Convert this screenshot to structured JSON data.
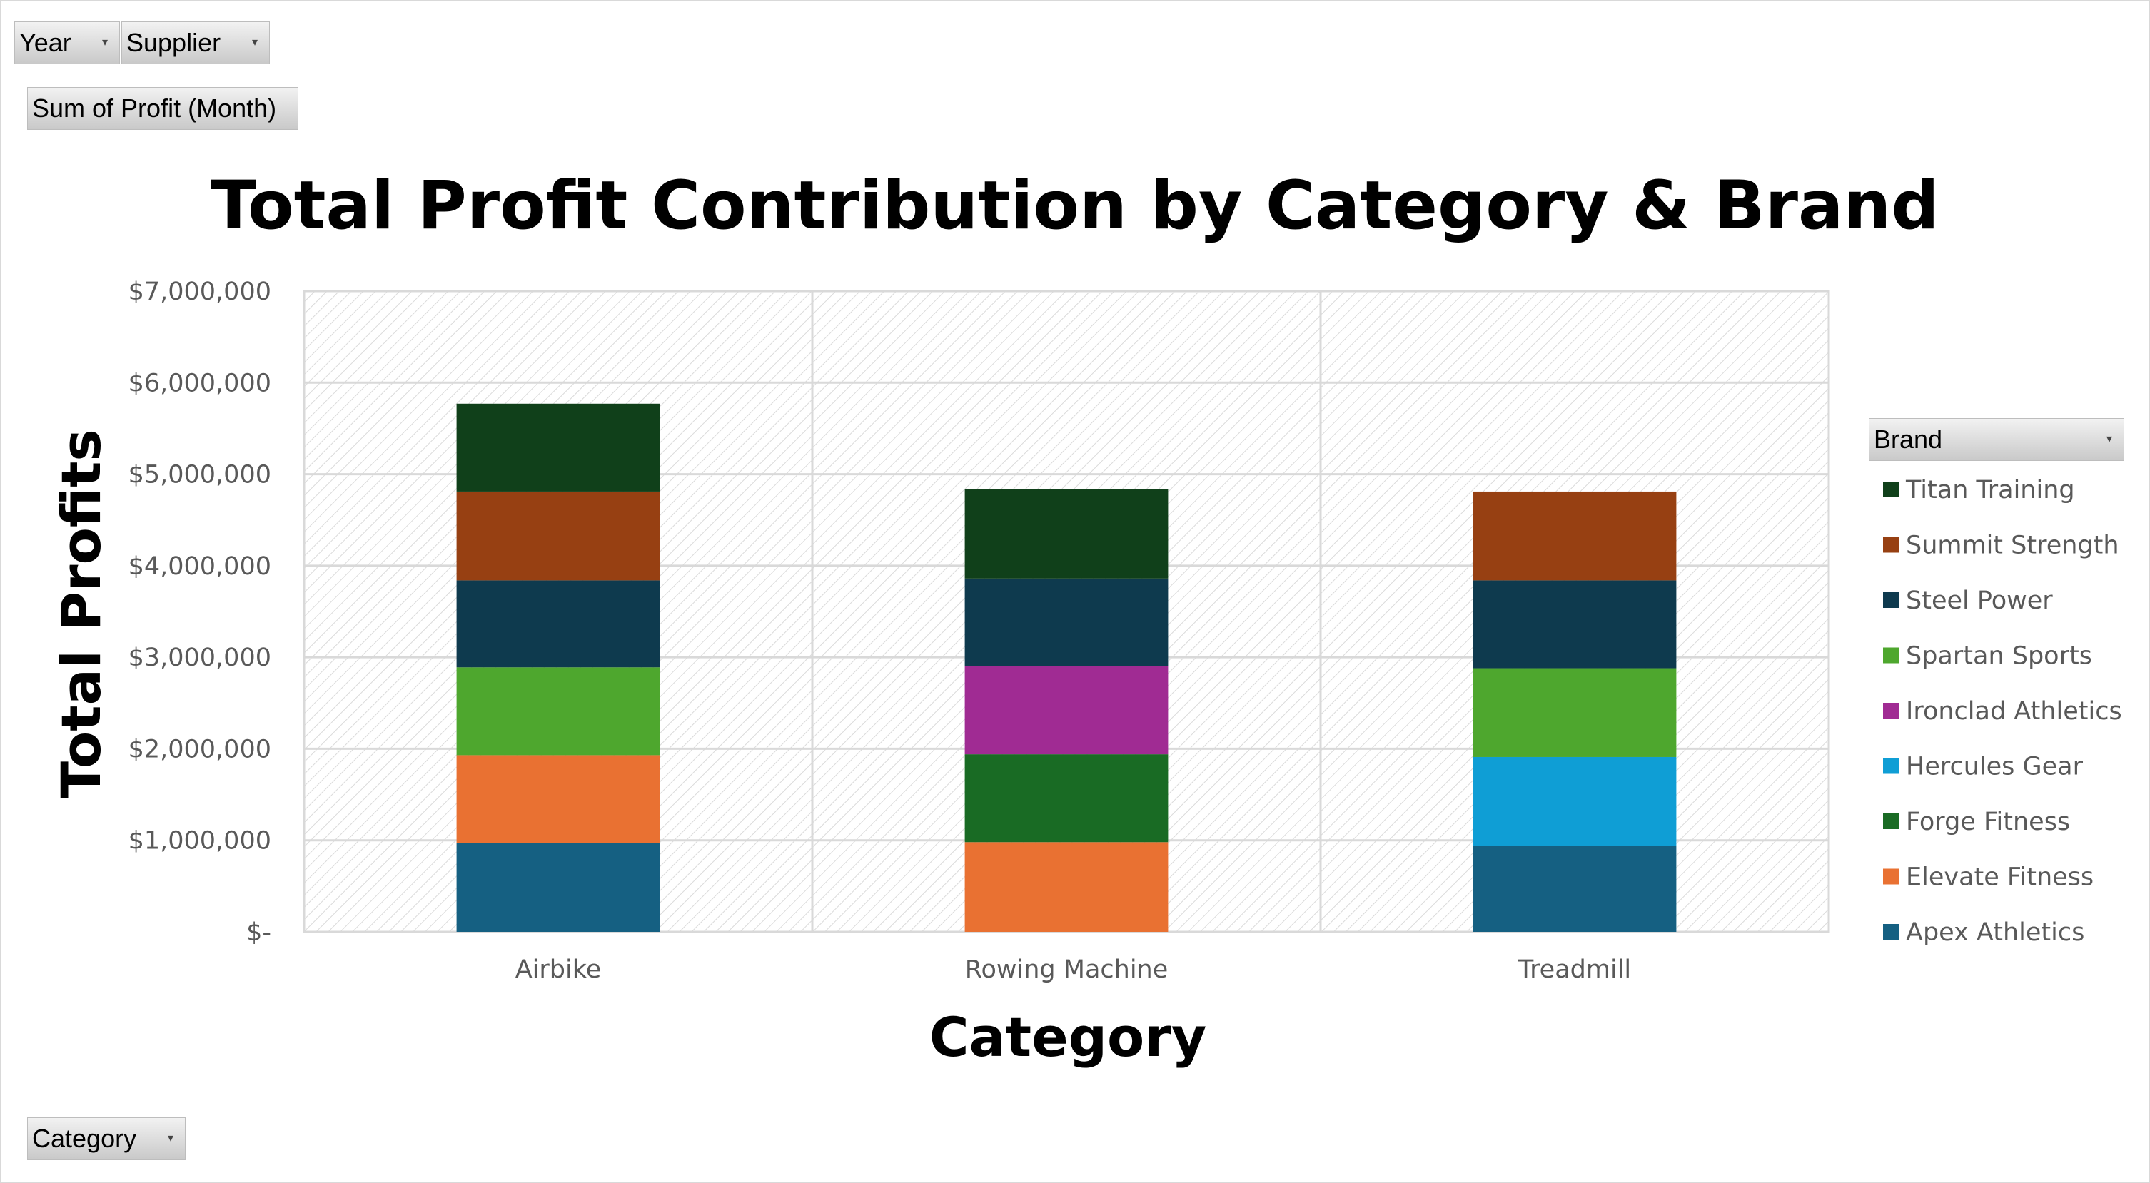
{
  "filters": {
    "year_label": "Year",
    "supplier_label": "Supplier",
    "values_label": "Sum of Profit (Month)",
    "legend_field_label": "Brand",
    "axis_field_label": "Category"
  },
  "chart_data": {
    "type": "bar",
    "stacked": true,
    "title": "Total Profit Contribution by Category & Brand",
    "xlabel": "Category",
    "ylabel": "Total Profits",
    "ylim": [
      0,
      7000000
    ],
    "yticks": [
      0,
      1000000,
      2000000,
      3000000,
      4000000,
      5000000,
      6000000,
      7000000
    ],
    "ytick_labels": [
      "$-",
      "$1,000,000",
      "$2,000,000",
      "$3,000,000",
      "$4,000,000",
      "$5,000,000",
      "$6,000,000",
      "$7,000,000"
    ],
    "grid": true,
    "legend_placement": "right",
    "categories": [
      "Airbike",
      "Rowing Machine",
      "Treadmill"
    ],
    "series": [
      {
        "name": "Apex Athletics",
        "color": "#156082",
        "values": [
          970000,
          0,
          940000
        ]
      },
      {
        "name": "Elevate Fitness",
        "color": "#E97132",
        "values": [
          960000,
          980000,
          0
        ]
      },
      {
        "name": "Forge Fitness",
        "color": "#196B24",
        "values": [
          0,
          960000,
          0
        ]
      },
      {
        "name": "Hercules Gear",
        "color": "#0F9ED5",
        "values": [
          0,
          0,
          970000
        ]
      },
      {
        "name": "Ironclad Athletics",
        "color": "#A02B93",
        "values": [
          0,
          960000,
          0
        ]
      },
      {
        "name": "Spartan Sports",
        "color": "#4EA72E",
        "values": [
          960000,
          0,
          970000
        ]
      },
      {
        "name": "Steel Power",
        "color": "#0E3A4E",
        "values": [
          950000,
          960000,
          960000
        ]
      },
      {
        "name": "Summit Strength",
        "color": "#974012",
        "values": [
          970000,
          0,
          970000
        ]
      },
      {
        "name": "Titan Training",
        "color": "#10401A",
        "values": [
          960000,
          980000,
          0
        ]
      }
    ]
  }
}
